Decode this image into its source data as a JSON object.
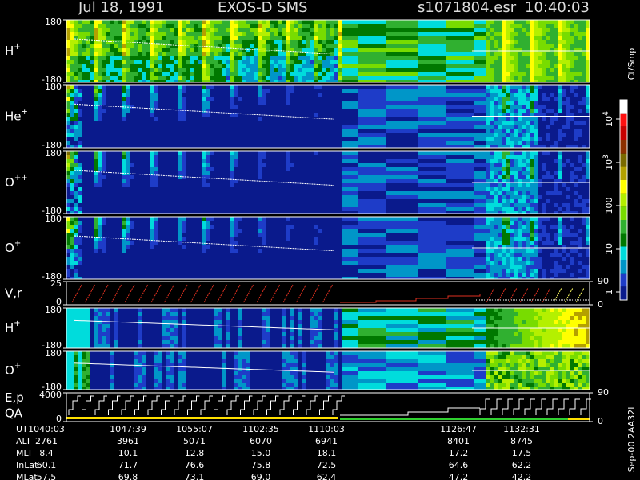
{
  "header": {
    "date": "Jul 18, 1991",
    "instrument": "EXOS-D SMS",
    "file": "s1071804.esr",
    "time": "10:40:03"
  },
  "panels": [
    {
      "label": "H",
      "sup": "+",
      "yticks": [
        180,
        -180
      ]
    },
    {
      "label": "He",
      "sup": "+",
      "yticks": [
        180,
        -180
      ]
    },
    {
      "label": "O",
      "sup": "++",
      "yticks": [
        180,
        -180
      ]
    },
    {
      "label": "O",
      "sup": "+",
      "yticks": [
        180,
        -180
      ]
    },
    {
      "label": "V,r",
      "yticks": [
        25,
        0
      ],
      "y2ticks": [
        90,
        0
      ]
    },
    {
      "label": "H",
      "sup": "+",
      "yticks": [
        180,
        -180
      ]
    },
    {
      "label": "O",
      "sup": "+",
      "yticks": [
        180,
        -180
      ]
    },
    {
      "label": "E,p",
      "label2": "QA",
      "yticks": [
        4000,
        0
      ],
      "y2ticks": [
        90,
        0
      ]
    }
  ],
  "colorbar": {
    "unit": "Ct/Smp",
    "ticks": [
      {
        "value": 10000,
        "label": "10",
        "exp": "4"
      },
      {
        "value": 1000,
        "label": "10",
        "exp": "3"
      },
      100,
      10,
      1
    ]
  },
  "table": {
    "row_labels": [
      "UT",
      "ALT",
      "MLT",
      "InLat",
      "MLat"
    ],
    "rows": [
      [
        "1040:03",
        "1047:39",
        "1055:07",
        "1102:35",
        "1110:03",
        "1126:47",
        "1132:31"
      ],
      [
        "2761",
        "3961",
        "5071",
        "6070",
        "6941",
        "8401",
        "8745"
      ],
      [
        "8.4",
        "10.1",
        "12.8",
        "15.0",
        "18.1",
        "17.2",
        "17.5"
      ],
      [
        "60.1",
        "71.7",
        "76.6",
        "75.8",
        "72.5",
        "64.6",
        "62.2"
      ],
      [
        "57.5",
        "69.8",
        "73.1",
        "69.0",
        "62.4",
        "47.2",
        "42.2"
      ]
    ]
  },
  "footer": "Sep-00  2AA32L"
}
